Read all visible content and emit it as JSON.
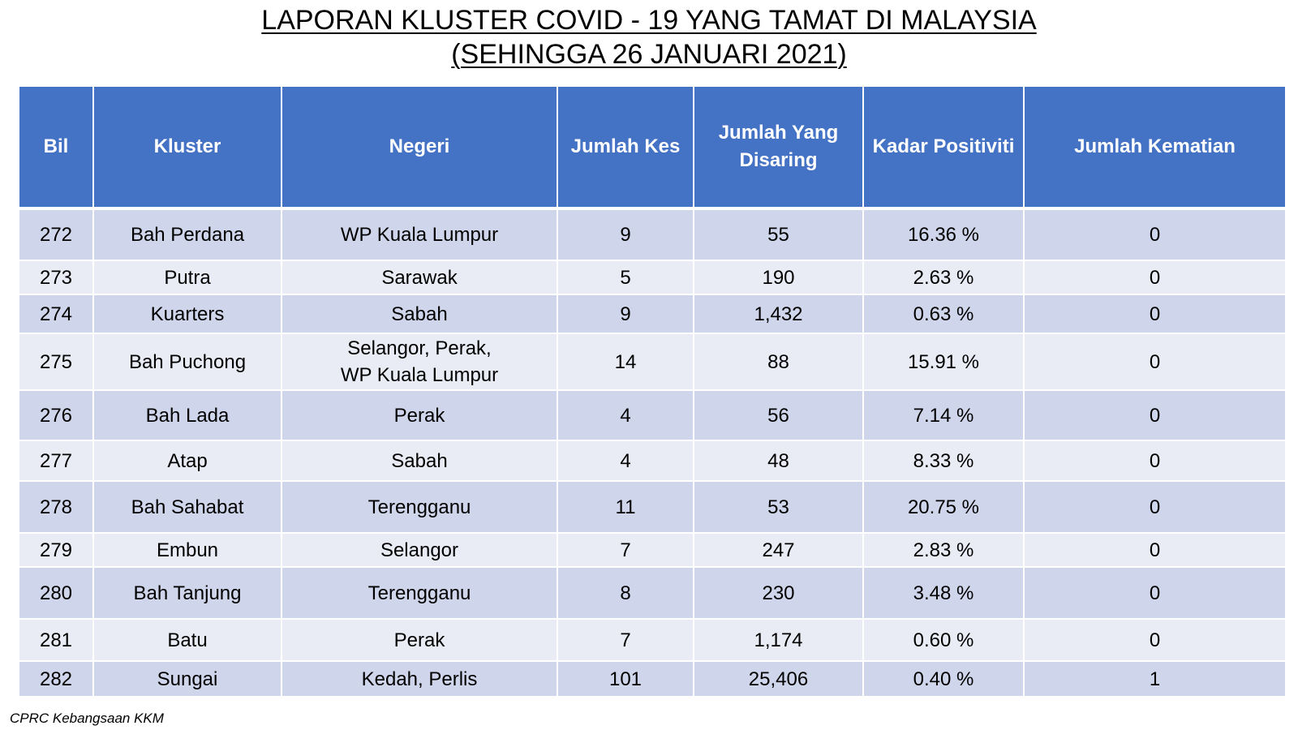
{
  "title": {
    "line1": "LAPORAN KLUSTER COVID - 19 YANG TAMAT DI MALAYSIA",
    "line2": "(SEHINGGA 26 JANUARI 2021)"
  },
  "table": {
    "headers": {
      "bil": "Bil",
      "kluster": "Kluster",
      "negeri": "Negeri",
      "jumlah_kes": "Jumlah Kes",
      "jumlah_disaring_1": "Jumlah Yang",
      "jumlah_disaring_2": "Disaring",
      "kadar_positiviti": "Kadar Positiviti",
      "jumlah_kematian": "Jumlah Kematian"
    },
    "rows": [
      {
        "bil": "272",
        "kluster": "Bah Perdana",
        "negeri_1": "WP Kuala Lumpur",
        "negeri_2": "",
        "kes": "9",
        "disaring": "55",
        "positiviti": "16.36 %",
        "kematian": "0"
      },
      {
        "bil": "273",
        "kluster": "Putra",
        "negeri_1": "Sarawak",
        "negeri_2": "",
        "kes": "5",
        "disaring": "190",
        "positiviti": "2.63 %",
        "kematian": "0"
      },
      {
        "bil": "274",
        "kluster": "Kuarters",
        "negeri_1": "Sabah",
        "negeri_2": "",
        "kes": "9",
        "disaring": "1,432",
        "positiviti": "0.63 %",
        "kematian": "0"
      },
      {
        "bil": "275",
        "kluster": "Bah Puchong",
        "negeri_1": "Selangor, Perak,",
        "negeri_2": "WP Kuala Lumpur",
        "kes": "14",
        "disaring": "88",
        "positiviti": "15.91 %",
        "kematian": "0"
      },
      {
        "bil": "276",
        "kluster": "Bah Lada",
        "negeri_1": "Perak",
        "negeri_2": "",
        "kes": "4",
        "disaring": "56",
        "positiviti": "7.14 %",
        "kematian": "0"
      },
      {
        "bil": "277",
        "kluster": "Atap",
        "negeri_1": "Sabah",
        "negeri_2": "",
        "kes": "4",
        "disaring": "48",
        "positiviti": "8.33 %",
        "kematian": "0"
      },
      {
        "bil": "278",
        "kluster": "Bah Sahabat",
        "negeri_1": "Terengganu",
        "negeri_2": "",
        "kes": "11",
        "disaring": "53",
        "positiviti": "20.75 %",
        "kematian": "0"
      },
      {
        "bil": "279",
        "kluster": "Embun",
        "negeri_1": "Selangor",
        "negeri_2": "",
        "kes": "7",
        "disaring": "247",
        "positiviti": "2.83 %",
        "kematian": "0"
      },
      {
        "bil": "280",
        "kluster": "Bah Tanjung",
        "negeri_1": "Terengganu",
        "negeri_2": "",
        "kes": "8",
        "disaring": "230",
        "positiviti": "3.48 %",
        "kematian": "0"
      },
      {
        "bil": "281",
        "kluster": "Batu",
        "negeri_1": "Perak",
        "negeri_2": "",
        "kes": "7",
        "disaring": "1,174",
        "positiviti": "0.60 %",
        "kematian": "0"
      },
      {
        "bil": "282",
        "kluster": "Sungai",
        "negeri_1": "Kedah, Perlis",
        "negeri_2": "",
        "kes": "101",
        "disaring": "25,406",
        "positiviti": "0.40 %",
        "kematian": "1"
      }
    ]
  },
  "footer": {
    "source": "CPRC Kebangsaan KKM"
  },
  "colors": {
    "header_bg": "#4472c4",
    "row_odd_bg": "#cfd5ea",
    "row_even_bg": "#e9ebf5"
  }
}
